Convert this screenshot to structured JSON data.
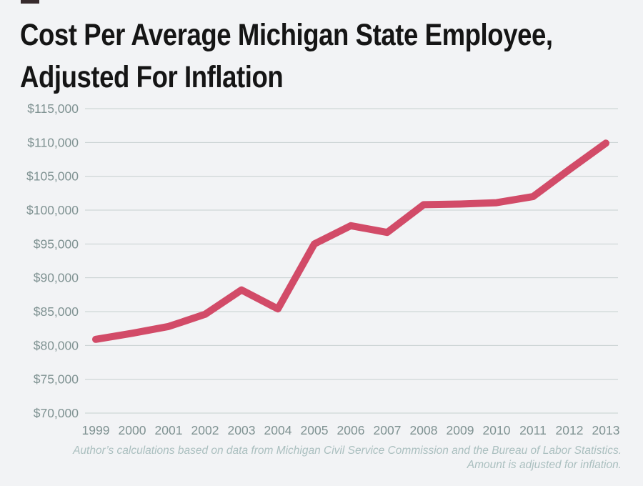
{
  "title": {
    "line1": "Cost Per Average Michigan State Employee,",
    "line2": "Adjusted For Inflation"
  },
  "footer": {
    "line1": "Author’s calculations based on data from Michigan Civil Service Commission and the Bureau of Labor Statistics.",
    "line2": "Amount is adjusted for inflation."
  },
  "colors": {
    "background": "#f2f3f5",
    "line": "#d24b68",
    "gridline": "#c6d0d0",
    "axis_label": "#7f9292",
    "footer_text": "#aabfbf",
    "title_text": "#151515"
  },
  "chart_data": {
    "type": "line",
    "title": "Cost Per Average Michigan State Employee, Adjusted For Inflation",
    "x": [
      "1999",
      "2000",
      "2001",
      "2002",
      "2003",
      "2004",
      "2005",
      "2006",
      "2007",
      "2008",
      "2009",
      "2010",
      "2011",
      "2012",
      "2013"
    ],
    "values": [
      80900,
      81800,
      82800,
      84600,
      88200,
      85400,
      95000,
      97700,
      96700,
      100800,
      100900,
      101100,
      102000,
      106000,
      109900
    ],
    "xlabel": "",
    "ylabel": "",
    "ylim": [
      70000,
      115000
    ],
    "grid": "horizontal",
    "legend": "none",
    "y_ticks": [
      {
        "label": "$115,000",
        "value": 115000
      },
      {
        "label": "$110,000",
        "value": 110000
      },
      {
        "label": "$105,000",
        "value": 105000
      },
      {
        "label": "$100,000",
        "value": 100000
      },
      {
        "label": "$95,000",
        "value": 95000
      },
      {
        "label": "$90,000",
        "value": 90000
      },
      {
        "label": "$85,000",
        "value": 85000
      },
      {
        "label": "$80,000",
        "value": 80000
      },
      {
        "label": "$75,000",
        "value": 75000
      },
      {
        "label": "$70,000",
        "value": 70000
      }
    ]
  }
}
